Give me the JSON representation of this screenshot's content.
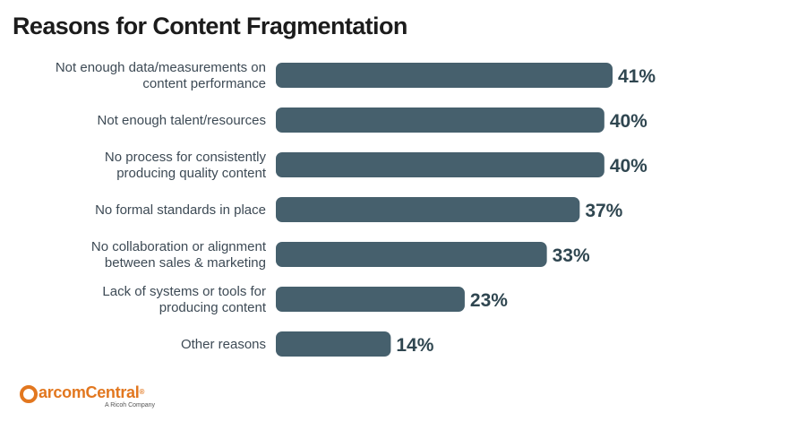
{
  "title": "Reasons for Content Fragmentation",
  "chart_data": {
    "type": "bar",
    "orientation": "horizontal",
    "categories": [
      [
        "Not enough data/measurements on",
        "content performance"
      ],
      [
        "Not enough talent/resources"
      ],
      [
        "No process for consistently",
        "producing quality content"
      ],
      [
        "No formal standards in place"
      ],
      [
        "No collaboration or alignment",
        "between sales & marketing"
      ],
      [
        "Lack of systems or tools for",
        "producing content"
      ],
      [
        "Other reasons"
      ]
    ],
    "values": [
      41,
      40,
      40,
      37,
      33,
      23,
      14
    ],
    "value_labels": [
      "41%",
      "40%",
      "40%",
      "37%",
      "33%",
      "23%",
      "14%"
    ],
    "unit": "%",
    "xlim": [
      0,
      41
    ],
    "grid": false,
    "legend": "none",
    "bar_color": "#46606d",
    "value_label_color": "#2f4650",
    "category_label_color": "#3d4a55"
  },
  "logo": {
    "name_prefix": "M",
    "name_rest": "arcomCentral",
    "registered": "®",
    "tagline": "A Ricoh Company",
    "color": "#e2771f"
  }
}
